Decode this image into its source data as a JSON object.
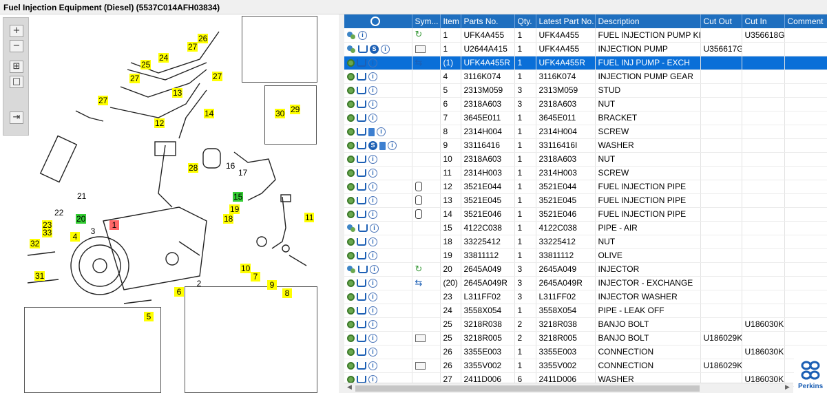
{
  "window": {
    "title": "Fuel Injection Equipment (Diesel) (5537C014AFH03834)"
  },
  "diagram": {
    "toolbar": [
      "zoom-in",
      "zoom-out",
      "fit-all",
      "fit-window",
      "export"
    ],
    "callouts": [
      {
        "label": "26",
        "style": "yellow"
      },
      {
        "label": "27",
        "style": "yellow"
      },
      {
        "label": "25",
        "style": "yellow"
      },
      {
        "label": "24",
        "style": "yellow"
      },
      {
        "label": "27",
        "style": "yellow"
      },
      {
        "label": "27",
        "style": "yellow"
      },
      {
        "label": "13",
        "style": "yellow"
      },
      {
        "label": "27",
        "style": "yellow"
      },
      {
        "label": "14",
        "style": "yellow"
      },
      {
        "label": "12",
        "style": "yellow"
      },
      {
        "label": "28",
        "style": "yellow"
      },
      {
        "label": "16",
        "style": "plain"
      },
      {
        "label": "17",
        "style": "plain"
      },
      {
        "label": "21",
        "style": "plain"
      },
      {
        "label": "22",
        "style": "plain"
      },
      {
        "label": "20",
        "style": "green"
      },
      {
        "label": "15",
        "style": "green"
      },
      {
        "label": "19",
        "style": "yellow"
      },
      {
        "label": "18",
        "style": "yellow"
      },
      {
        "label": "11",
        "style": "yellow"
      },
      {
        "label": "1",
        "style": "red"
      },
      {
        "label": "23",
        "style": "yellow"
      },
      {
        "label": "33",
        "style": "yellow"
      },
      {
        "label": "32",
        "style": "yellow"
      },
      {
        "label": "4",
        "style": "yellow"
      },
      {
        "label": "3",
        "style": "plain"
      },
      {
        "label": "2",
        "style": "plain"
      },
      {
        "label": "6",
        "style": "yellow"
      },
      {
        "label": "10",
        "style": "yellow"
      },
      {
        "label": "7",
        "style": "yellow"
      },
      {
        "label": "9",
        "style": "yellow"
      },
      {
        "label": "8",
        "style": "yellow"
      },
      {
        "label": "31",
        "style": "yellow"
      },
      {
        "label": "5",
        "style": "yellow"
      },
      {
        "label": "30",
        "style": "yellow"
      },
      {
        "label": "29",
        "style": "yellow"
      }
    ]
  },
  "grid": {
    "columns": [
      "",
      "Sym...",
      "Item",
      "Parts No.",
      "Qty.",
      "Latest Part No.",
      "Description",
      "Cut Out",
      "Cut In",
      "Comment"
    ],
    "rows": [
      {
        "icons": [
          "gearpair-icon",
          "info-icon"
        ],
        "sym": "arrow",
        "item": "1",
        "part": "UFK4A455",
        "qty": "1",
        "latest": "UFK4A455",
        "desc": "FUEL INJECTION PUMP KIT",
        "cut_out": "",
        "cut_in": "U356618G",
        "comment": "",
        "selected": false
      },
      {
        "icons": [
          "gearpair-icon",
          "cart-icon",
          "s-icon",
          "info-icon"
        ],
        "sym": "book",
        "item": "1",
        "part": "U2644A415",
        "qty": "1",
        "latest": "UFK4A455",
        "desc": "INJECTION PUMP",
        "cut_out": "U356617G",
        "cut_in": "",
        "comment": "",
        "selected": false
      },
      {
        "icons": [
          "gear-icon",
          "cart-icon",
          "info-icon"
        ],
        "sym": "exch",
        "item": "(1)",
        "part": "UFK4A455R",
        "qty": "1",
        "latest": "UFK4A455R",
        "desc": "FUEL INJ PUMP - EXCH",
        "cut_out": "",
        "cut_in": "",
        "comment": "",
        "selected": true
      },
      {
        "icons": [
          "gear-icon",
          "cart-icon",
          "info-icon"
        ],
        "sym": "",
        "item": "4",
        "part": "3116K074",
        "qty": "1",
        "latest": "3116K074",
        "desc": "INJECTION PUMP GEAR",
        "cut_out": "",
        "cut_in": "",
        "comment": "",
        "selected": false
      },
      {
        "icons": [
          "gear-icon",
          "cart-icon",
          "info-icon"
        ],
        "sym": "",
        "item": "5",
        "part": "2313M059",
        "qty": "3",
        "latest": "2313M059",
        "desc": "STUD",
        "cut_out": "",
        "cut_in": "",
        "comment": "",
        "selected": false
      },
      {
        "icons": [
          "gear-icon",
          "cart-icon",
          "info-icon"
        ],
        "sym": "",
        "item": "6",
        "part": "2318A603",
        "qty": "3",
        "latest": "2318A603",
        "desc": "NUT",
        "cut_out": "",
        "cut_in": "",
        "comment": "",
        "selected": false
      },
      {
        "icons": [
          "gear-icon",
          "cart-icon",
          "info-icon"
        ],
        "sym": "",
        "item": "7",
        "part": "3645E011",
        "qty": "1",
        "latest": "3645E011",
        "desc": "BRACKET",
        "cut_out": "",
        "cut_in": "",
        "comment": "",
        "selected": false
      },
      {
        "icons": [
          "gear-icon",
          "cart-icon",
          "doc-icon",
          "info-icon"
        ],
        "sym": "",
        "item": "8",
        "part": "2314H004",
        "qty": "1",
        "latest": "2314H004",
        "desc": "SCREW",
        "cut_out": "",
        "cut_in": "",
        "comment": "",
        "selected": false
      },
      {
        "icons": [
          "gear-icon",
          "cart-icon",
          "s-icon",
          "doc-icon",
          "info-icon"
        ],
        "sym": "",
        "item": "9",
        "part": "33116416",
        "qty": "1",
        "latest": "33116416I",
        "desc": "WASHER",
        "cut_out": "",
        "cut_in": "",
        "comment": "",
        "selected": false
      },
      {
        "icons": [
          "gear-icon",
          "cart-icon",
          "info-icon"
        ],
        "sym": "",
        "item": "10",
        "part": "2318A603",
        "qty": "1",
        "latest": "2318A603",
        "desc": "NUT",
        "cut_out": "",
        "cut_in": "",
        "comment": "",
        "selected": false
      },
      {
        "icons": [
          "gear-icon",
          "cart-icon",
          "info-icon"
        ],
        "sym": "",
        "item": "11",
        "part": "2314H003",
        "qty": "1",
        "latest": "2314H003",
        "desc": "SCREW",
        "cut_out": "",
        "cut_in": "",
        "comment": "",
        "selected": false
      },
      {
        "icons": [
          "gear-icon",
          "cart-icon",
          "info-icon"
        ],
        "sym": "cyl",
        "item": "12",
        "part": "3521E044",
        "qty": "1",
        "latest": "3521E044",
        "desc": "FUEL INJECTION PIPE",
        "cut_out": "",
        "cut_in": "",
        "comment": "",
        "selected": false
      },
      {
        "icons": [
          "gear-icon",
          "cart-icon",
          "info-icon"
        ],
        "sym": "cyl",
        "item": "13",
        "part": "3521E045",
        "qty": "1",
        "latest": "3521E045",
        "desc": "FUEL INJECTION PIPE",
        "cut_out": "",
        "cut_in": "",
        "comment": "",
        "selected": false
      },
      {
        "icons": [
          "gear-icon",
          "cart-icon",
          "info-icon"
        ],
        "sym": "cyl",
        "item": "14",
        "part": "3521E046",
        "qty": "1",
        "latest": "3521E046",
        "desc": "FUEL INJECTION PIPE",
        "cut_out": "",
        "cut_in": "",
        "comment": "",
        "selected": false
      },
      {
        "icons": [
          "gearpair-icon",
          "cart-icon",
          "info-icon"
        ],
        "sym": "",
        "item": "15",
        "part": "4122C038",
        "qty": "1",
        "latest": "4122C038",
        "desc": "PIPE - AIR",
        "cut_out": "",
        "cut_in": "",
        "comment": "",
        "selected": false
      },
      {
        "icons": [
          "gear-icon",
          "cart-icon",
          "info-icon"
        ],
        "sym": "",
        "item": "18",
        "part": "33225412",
        "qty": "1",
        "latest": "33225412",
        "desc": "NUT",
        "cut_out": "",
        "cut_in": "",
        "comment": "",
        "selected": false
      },
      {
        "icons": [
          "gear-icon",
          "cart-icon",
          "info-icon"
        ],
        "sym": "",
        "item": "19",
        "part": "33811112",
        "qty": "1",
        "latest": "33811112",
        "desc": "OLIVE",
        "cut_out": "",
        "cut_in": "",
        "comment": "",
        "selected": false
      },
      {
        "icons": [
          "gearpair-icon",
          "cart-icon",
          "info-icon"
        ],
        "sym": "arrow",
        "item": "20",
        "part": "2645A049",
        "qty": "3",
        "latest": "2645A049",
        "desc": "INJECTOR",
        "cut_out": "",
        "cut_in": "",
        "comment": "",
        "selected": false
      },
      {
        "icons": [
          "gear-icon",
          "cart-icon",
          "info-icon"
        ],
        "sym": "exch",
        "item": "(20)",
        "part": "2645A049R",
        "qty": "3",
        "latest": "2645A049R",
        "desc": "INJECTOR - EXCHANGE",
        "cut_out": "",
        "cut_in": "",
        "comment": "",
        "selected": false
      },
      {
        "icons": [
          "gear-icon",
          "cart-icon",
          "info-icon"
        ],
        "sym": "",
        "item": "23",
        "part": "L311FF02",
        "qty": "3",
        "latest": "L311FF02",
        "desc": "INJECTOR WASHER",
        "cut_out": "",
        "cut_in": "",
        "comment": "",
        "selected": false
      },
      {
        "icons": [
          "gear-icon",
          "cart-icon",
          "info-icon"
        ],
        "sym": "",
        "item": "24",
        "part": "3558X054",
        "qty": "1",
        "latest": "3558X054",
        "desc": "PIPE - LEAK OFF",
        "cut_out": "",
        "cut_in": "",
        "comment": "",
        "selected": false
      },
      {
        "icons": [
          "gear-icon",
          "cart-icon",
          "info-icon"
        ],
        "sym": "",
        "item": "25",
        "part": "3218R038",
        "qty": "2",
        "latest": "3218R038",
        "desc": "BANJO BOLT",
        "cut_out": "",
        "cut_in": "U186030K",
        "comment": "",
        "selected": false
      },
      {
        "icons": [
          "gear-icon",
          "cart-icon",
          "info-icon"
        ],
        "sym": "book",
        "item": "25",
        "part": "3218R005",
        "qty": "2",
        "latest": "3218R005",
        "desc": "BANJO BOLT",
        "cut_out": "U186029K",
        "cut_in": "",
        "comment": "",
        "selected": false
      },
      {
        "icons": [
          "gear-icon",
          "cart-icon",
          "info-icon"
        ],
        "sym": "",
        "item": "26",
        "part": "3355E003",
        "qty": "1",
        "latest": "3355E003",
        "desc": "CONNECTION",
        "cut_out": "",
        "cut_in": "U186030K",
        "comment": "",
        "selected": false
      },
      {
        "icons": [
          "gear-icon",
          "cart-icon",
          "info-icon"
        ],
        "sym": "book",
        "item": "26",
        "part": "3355V002",
        "qty": "1",
        "latest": "3355V002",
        "desc": "CONNECTION",
        "cut_out": "U186029K",
        "cut_in": "",
        "comment": "",
        "selected": false
      },
      {
        "icons": [
          "gear-icon",
          "cart-icon",
          "info-icon"
        ],
        "sym": "",
        "item": "27",
        "part": "2411D006",
        "qty": "6",
        "latest": "2411D006",
        "desc": "WASHER",
        "cut_out": "",
        "cut_in": "U186030K",
        "comment": "",
        "selected": false
      }
    ]
  },
  "brand": {
    "name": "Perkins"
  },
  "colors": {
    "header": "#1f6fbf",
    "selected": "#0a6fd8",
    "callout": "#ffff00",
    "callout_active": "#33cc33",
    "callout_current": "#ff6666"
  }
}
